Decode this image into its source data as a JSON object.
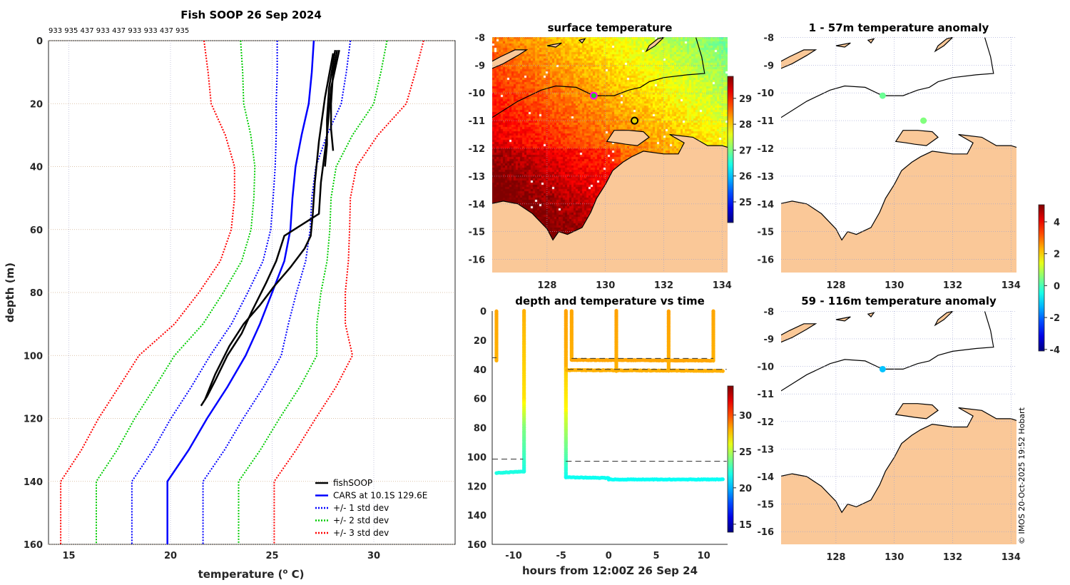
{
  "figure": {
    "title": "Fish SOOP 26 Sep 2024",
    "instrument_ids": "933 935 437 933 437 933 933 437 935",
    "credit": "© IMOS 20-Oct-2025 19:52 Hobart"
  },
  "chart_data": [
    {
      "id": "profile",
      "type": "line",
      "title": "Fish SOOP 26 Sep 2024",
      "xlabel_prefix": "temperature (",
      "xlabel_sup": "o",
      "xlabel_suffix": " C)",
      "ylabel": "depth (m)",
      "xlim": [
        14,
        34
      ],
      "ylim": [
        0,
        160
      ],
      "y_reversed": true,
      "grid": true,
      "xticks": [
        "15",
        "20",
        "25",
        "30"
      ],
      "yticks": [
        "0",
        "20",
        "40",
        "60",
        "80",
        "100",
        "120",
        "140",
        "160"
      ],
      "cars_depth": [
        0,
        10,
        20,
        30,
        40,
        50,
        60,
        70,
        80,
        90,
        100,
        110,
        120,
        130,
        140,
        160
      ],
      "cars_mean": [
        27.05,
        26.95,
        26.8,
        26.45,
        26.15,
        26.0,
        25.9,
        25.6,
        25.0,
        24.4,
        23.7,
        22.8,
        21.8,
        20.9,
        19.85,
        19.85
      ],
      "cars_std": [
        1.8,
        1.7,
        1.6,
        1.25,
        1.0,
        0.95,
        0.97,
        1.05,
        1.2,
        1.4,
        1.75,
        1.78,
        1.78,
        1.76,
        1.75,
        1.75
      ],
      "fishsoop_profiles": [
        [
          [
            28.2,
            3
          ],
          [
            28.0,
            10
          ],
          [
            27.9,
            20
          ],
          [
            27.9,
            28
          ],
          [
            28.0,
            35
          ]
        ],
        [
          [
            28.1,
            3
          ],
          [
            27.8,
            15
          ],
          [
            27.7,
            25
          ],
          [
            27.7,
            33
          ],
          [
            27.6,
            40
          ]
        ],
        [
          [
            28.3,
            3
          ],
          [
            27.9,
            15
          ],
          [
            27.7,
            30
          ],
          [
            27.4,
            45
          ],
          [
            27.3,
            55
          ],
          [
            25.6,
            62
          ],
          [
            25.2,
            70
          ],
          [
            24.7,
            77
          ],
          [
            24.0,
            86
          ],
          [
            23.5,
            93
          ],
          [
            22.8,
            100
          ],
          [
            22.2,
            108
          ],
          [
            21.8,
            113
          ],
          [
            21.5,
            116
          ]
        ],
        [
          [
            28.0,
            4
          ],
          [
            27.6,
            18
          ],
          [
            27.3,
            32
          ],
          [
            27.1,
            45
          ],
          [
            27.0,
            55
          ],
          [
            26.9,
            62
          ],
          [
            26.6,
            66
          ],
          [
            25.9,
            72
          ],
          [
            25.1,
            78
          ],
          [
            24.4,
            84
          ],
          [
            23.6,
            90
          ],
          [
            22.9,
            97
          ],
          [
            22.2,
            106
          ],
          [
            21.7,
            114
          ]
        ]
      ],
      "legend_position": "bottom-right",
      "legend": [
        {
          "label": "fishSOOP",
          "color": "#000000",
          "style": "solid"
        },
        {
          "label": "CARS at 10.1S 129.6E",
          "color": "#0000ff",
          "style": "solid"
        },
        {
          "label": "+/- 1 std dev",
          "color": "#0000ff",
          "style": "dotted"
        },
        {
          "label": "+/- 2 std dev",
          "color": "#00cc00",
          "style": "dotted"
        },
        {
          "label": "+/- 3 std dev",
          "color": "#ff0000",
          "style": "dotted"
        }
      ]
    },
    {
      "id": "sst",
      "type": "heatmap",
      "title": "surface temperature",
      "lon_ticks": [
        "128",
        "130",
        "132",
        "134"
      ],
      "lat_ticks": [
        "-8",
        "-9",
        "-10",
        "-11",
        "-12",
        "-13",
        "-14",
        "-15",
        "-16"
      ],
      "colorbar_ticks": [
        "25",
        "26",
        "27",
        "28",
        "29"
      ],
      "colorbar_range": [
        24.2,
        29.85
      ],
      "markers": [
        {
          "lon": 129.6,
          "lat": -10.1,
          "fill": "#22cc22",
          "edge": "#ff00ff"
        },
        {
          "lon": 131.0,
          "lat": -11.0,
          "fill": "#e8d800",
          "edge": "#000000"
        }
      ]
    },
    {
      "id": "anom_upper",
      "type": "scatter",
      "title": "1 - 57m temperature anomaly",
      "lon_ticks": [
        "128",
        "130",
        "132",
        "134"
      ],
      "lat_ticks": [
        "-8",
        "-9",
        "-10",
        "-11",
        "-12",
        "-13",
        "-14",
        "-15",
        "-16"
      ],
      "points": [
        {
          "lon": 129.6,
          "lat": -10.1,
          "anomaly": 0.3
        },
        {
          "lon": 131.0,
          "lat": -11.0,
          "anomaly": 0.5
        }
      ],
      "colorbar_ticks": [
        "4",
        "2",
        "0",
        "-2",
        "-4"
      ],
      "colorbar_range": [
        -4.1,
        5.07
      ]
    },
    {
      "id": "time_depth",
      "type": "scatter",
      "title": "depth and temperature vs time",
      "xlabel": "hours from 12:00Z 26 Sep 24",
      "xlim": [
        -12.25,
        12.5
      ],
      "ylim": [
        0,
        160
      ],
      "xticks": [
        "-10",
        "-5",
        "0",
        "5",
        "10"
      ],
      "yticks": [
        "0",
        "20",
        "40",
        "60",
        "80",
        "100",
        "120",
        "140",
        "160"
      ],
      "colorbar_ticks": [
        "15",
        "20",
        "25",
        "30"
      ],
      "colorbar_range": [
        13.9,
        34
      ],
      "segments": [
        {
          "h0": -11.8,
          "h1": -11.8,
          "d0": 0,
          "d1": 34,
          "t0": 28.2,
          "t1": 28.0
        },
        {
          "h0": -8.9,
          "h1": -8.9,
          "d0": 0,
          "d1": 60,
          "t0": 28.0,
          "t1": 27.0
        },
        {
          "h0": -8.9,
          "h1": -8.9,
          "d0": 60,
          "d1": 80,
          "t0": 27.0,
          "t1": 24.0
        },
        {
          "h0": -8.9,
          "h1": -8.9,
          "d0": 80,
          "d1": 110,
          "t0": 24.0,
          "t1": 22.0
        },
        {
          "h0": -11.8,
          "h1": -8.9,
          "d0": 111,
          "d1": 110,
          "t0": 22.0,
          "t1": 22.0
        },
        {
          "h0": -4.5,
          "h1": -4.5,
          "d0": 0,
          "d1": 40,
          "t0": 28.3,
          "t1": 28.0
        },
        {
          "h0": -4.5,
          "h1": -4.5,
          "d0": 40,
          "d1": 70,
          "t0": 27.5,
          "t1": 26.5
        },
        {
          "h0": -4.5,
          "h1": -4.5,
          "d0": 70,
          "d1": 90,
          "t0": 26.0,
          "t1": 24.0
        },
        {
          "h0": -4.5,
          "h1": -4.5,
          "d0": 90,
          "d1": 114,
          "t0": 24.0,
          "t1": 21.8
        },
        {
          "h0": -4.5,
          "h1": 0,
          "d0": 114,
          "d1": 114.5,
          "t0": 21.7,
          "t1": 21.7
        },
        {
          "h0": 0,
          "h1": 12,
          "d0": 115.5,
          "d1": 115.5,
          "t0": 21.6,
          "t1": 21.6
        },
        {
          "h0": -4.4,
          "h1": 12,
          "d0": 40.5,
          "d1": 41,
          "t0": 28.0,
          "t1": 28.0
        },
        {
          "h0": -3.9,
          "h1": -3.9,
          "d0": 0,
          "d1": 33,
          "t0": 28.2,
          "t1": 28.0
        },
        {
          "h0": -3.9,
          "h1": 11,
          "d0": 33.5,
          "d1": 34,
          "t0": 28.2,
          "t1": 28.2
        },
        {
          "h0": 0.8,
          "h1": 0.8,
          "d0": 0,
          "d1": 41,
          "t0": 28.3,
          "t1": 28.0
        },
        {
          "h0": 6.3,
          "h1": 6.3,
          "d0": 0,
          "d1": 41,
          "t0": 28.3,
          "t1": 28.0
        },
        {
          "h0": 11.0,
          "h1": 11.0,
          "d0": 0,
          "d1": 34,
          "t0": 28.2,
          "t1": 28.0
        }
      ],
      "reference_lines": [
        {
          "h0": -12.25,
          "h1": -11.8,
          "d": 32
        },
        {
          "h0": -12.25,
          "h1": -9.0,
          "d": 101.5
        },
        {
          "h0": -3.9,
          "h1": 11.0,
          "d": 32.5
        },
        {
          "h0": -4.3,
          "h1": 12.4,
          "d": 40
        },
        {
          "h0": -4.5,
          "h1": 12.4,
          "d": 103
        }
      ]
    },
    {
      "id": "anom_lower",
      "type": "scatter",
      "title": "59 - 116m temperature anomaly",
      "lon_ticks": [
        "128",
        "130",
        "132",
        "134"
      ],
      "lat_ticks": [
        "-8",
        "-9",
        "-10",
        "-11",
        "-12",
        "-13",
        "-14",
        "-15",
        "-16"
      ],
      "points": [
        {
          "lon": 129.6,
          "lat": -10.1,
          "anomaly": -1.2
        }
      ]
    }
  ]
}
